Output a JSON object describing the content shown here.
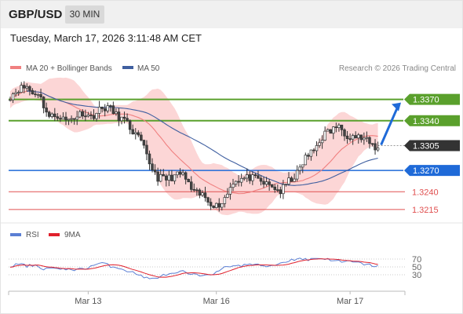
{
  "header": {
    "pair": "GBP/USD",
    "timeframe": "30 MIN",
    "timestamp": "Tuesday, March 17, 2026 3:11:48 AM CET"
  },
  "legend": {
    "ma20_label": "MA 20 + Bollinger Bands",
    "ma50_label": "MA 50",
    "credit": "Research © 2026 Trading Central",
    "rsi_label": "RSI",
    "ma9_label": "9MA"
  },
  "colors": {
    "up": "#ffffff",
    "down": "#444444",
    "ma20": "#f08080",
    "ma50": "#3f5fa0",
    "bands_fill": "#fcd6d6",
    "resistance": "#5aa02c",
    "pivot": "#1f6ad8",
    "support": "#e05050",
    "rsi": "#5b7fd4",
    "rsi_ma": "#e0202c",
    "last": "#333333"
  },
  "chart_data": {
    "type": "candlestick",
    "price_range": [
      1.3195,
      1.3405
    ],
    "x_ticks": [
      {
        "label": "Mar 13",
        "index": 28
      },
      {
        "label": "Mar 16",
        "index": 74
      },
      {
        "label": "Mar 17",
        "index": 122
      }
    ],
    "levels": [
      {
        "label": "1.3370",
        "value": 1.337,
        "kind": "resistance"
      },
      {
        "label": "1.3340",
        "value": 1.334,
        "kind": "resistance"
      },
      {
        "label": "1.3305",
        "value": 1.3305,
        "kind": "last"
      },
      {
        "label": "1.3270",
        "value": 1.327,
        "kind": "pivot"
      },
      {
        "label": "1.3240",
        "value": 1.324,
        "kind": "support"
      },
      {
        "label": "1.3215",
        "value": 1.3215,
        "kind": "support"
      }
    ],
    "anchors": [
      [
        0,
        1.3375
      ],
      [
        3,
        1.3385
      ],
      [
        6,
        1.3388
      ],
      [
        8,
        1.3378
      ],
      [
        10,
        1.338
      ],
      [
        12,
        1.3362
      ],
      [
        14,
        1.3345
      ],
      [
        17,
        1.3348
      ],
      [
        20,
        1.334
      ],
      [
        23,
        1.3345
      ],
      [
        26,
        1.3352
      ],
      [
        29,
        1.3345
      ],
      [
        32,
        1.3355
      ],
      [
        35,
        1.336
      ],
      [
        38,
        1.3348
      ],
      [
        41,
        1.334
      ],
      [
        44,
        1.3325
      ],
      [
        47,
        1.331
      ],
      [
        50,
        1.328
      ],
      [
        53,
        1.326
      ],
      [
        56,
        1.3258
      ],
      [
        59,
        1.3262
      ],
      [
        62,
        1.3265
      ],
      [
        64,
        1.325
      ],
      [
        66,
        1.3238
      ],
      [
        69,
        1.3235
      ],
      [
        72,
        1.3225
      ],
      [
        74,
        1.322
      ],
      [
        76,
        1.3225
      ],
      [
        78,
        1.3238
      ],
      [
        80,
        1.3255
      ],
      [
        83,
        1.3258
      ],
      [
        86,
        1.326
      ],
      [
        89,
        1.3256
      ],
      [
        92,
        1.325
      ],
      [
        95,
        1.3245
      ],
      [
        97,
        1.324
      ],
      [
        100,
        1.3255
      ],
      [
        103,
        1.3265
      ],
      [
        106,
        1.3288
      ],
      [
        109,
        1.3298
      ],
      [
        111,
        1.3312
      ],
      [
        113,
        1.3322
      ],
      [
        115,
        1.3325
      ],
      [
        117,
        1.3332
      ],
      [
        119,
        1.3328
      ],
      [
        121,
        1.332
      ],
      [
        124,
        1.3318
      ],
      [
        127,
        1.3314
      ],
      [
        130,
        1.3305
      ],
      [
        132,
        1.33
      ]
    ],
    "rsi": {
      "range": [
        0,
        100
      ],
      "levels": [
        70,
        50,
        30
      ],
      "anchors": [
        [
          0,
          50
        ],
        [
          3,
          58
        ],
        [
          6,
          52
        ],
        [
          9,
          55
        ],
        [
          12,
          45
        ],
        [
          15,
          48
        ],
        [
          18,
          42
        ],
        [
          21,
          45
        ],
        [
          24,
          43
        ],
        [
          27,
          46
        ],
        [
          30,
          55
        ],
        [
          33,
          60
        ],
        [
          36,
          52
        ],
        [
          39,
          48
        ],
        [
          42,
          40
        ],
        [
          45,
          33
        ],
        [
          48,
          25
        ],
        [
          50,
          18
        ],
        [
          53,
          24
        ],
        [
          56,
          30
        ],
        [
          59,
          32
        ],
        [
          62,
          38
        ],
        [
          65,
          30
        ],
        [
          68,
          28
        ],
        [
          71,
          32
        ],
        [
          74,
          35
        ],
        [
          77,
          48
        ],
        [
          80,
          55
        ],
        [
          83,
          52
        ],
        [
          86,
          58
        ],
        [
          89,
          54
        ],
        [
          92,
          52
        ],
        [
          95,
          55
        ],
        [
          98,
          62
        ],
        [
          101,
          68
        ],
        [
          104,
          72
        ],
        [
          107,
          68
        ],
        [
          110,
          73
        ],
        [
          113,
          70
        ],
        [
          116,
          68
        ],
        [
          119,
          62
        ],
        [
          122,
          64
        ],
        [
          125,
          60
        ],
        [
          128,
          56
        ],
        [
          131,
          52
        ],
        [
          132,
          51
        ]
      ]
    }
  }
}
